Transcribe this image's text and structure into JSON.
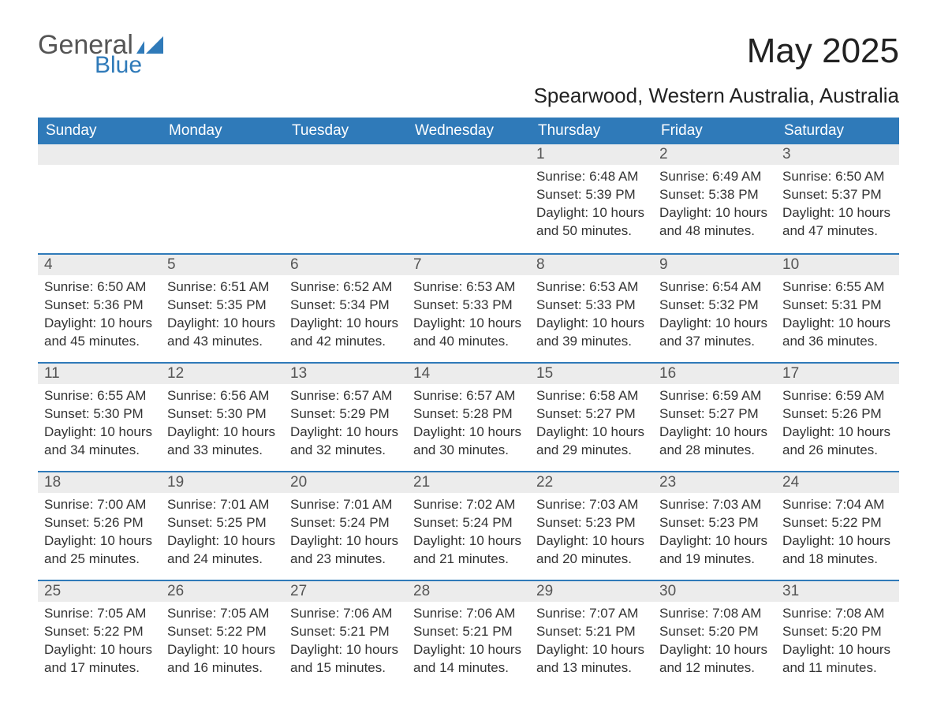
{
  "logo": {
    "general": "General",
    "blue": "Blue"
  },
  "title": "May 2025",
  "location": "Spearwood, Western Australia, Australia",
  "colors": {
    "header_bg": "#2f7ab9",
    "header_text": "#ffffff",
    "daybar_bg": "#ececec",
    "daybar_border": "#2f7ab9",
    "body_text": "#333333",
    "page_bg": "#ffffff"
  },
  "weekdays": [
    "Sunday",
    "Monday",
    "Tuesday",
    "Wednesday",
    "Thursday",
    "Friday",
    "Saturday"
  ],
  "labels": {
    "sunrise": "Sunrise:",
    "sunset": "Sunset:",
    "daylight": "Daylight:"
  },
  "weeks": [
    [
      null,
      null,
      null,
      null,
      {
        "n": "1",
        "sr": "6:48 AM",
        "ss": "5:39 PM",
        "dl": "10 hours and 50 minutes."
      },
      {
        "n": "2",
        "sr": "6:49 AM",
        "ss": "5:38 PM",
        "dl": "10 hours and 48 minutes."
      },
      {
        "n": "3",
        "sr": "6:50 AM",
        "ss": "5:37 PM",
        "dl": "10 hours and 47 minutes."
      }
    ],
    [
      {
        "n": "4",
        "sr": "6:50 AM",
        "ss": "5:36 PM",
        "dl": "10 hours and 45 minutes."
      },
      {
        "n": "5",
        "sr": "6:51 AM",
        "ss": "5:35 PM",
        "dl": "10 hours and 43 minutes."
      },
      {
        "n": "6",
        "sr": "6:52 AM",
        "ss": "5:34 PM",
        "dl": "10 hours and 42 minutes."
      },
      {
        "n": "7",
        "sr": "6:53 AM",
        "ss": "5:33 PM",
        "dl": "10 hours and 40 minutes."
      },
      {
        "n": "8",
        "sr": "6:53 AM",
        "ss": "5:33 PM",
        "dl": "10 hours and 39 minutes."
      },
      {
        "n": "9",
        "sr": "6:54 AM",
        "ss": "5:32 PM",
        "dl": "10 hours and 37 minutes."
      },
      {
        "n": "10",
        "sr": "6:55 AM",
        "ss": "5:31 PM",
        "dl": "10 hours and 36 minutes."
      }
    ],
    [
      {
        "n": "11",
        "sr": "6:55 AM",
        "ss": "5:30 PM",
        "dl": "10 hours and 34 minutes."
      },
      {
        "n": "12",
        "sr": "6:56 AM",
        "ss": "5:30 PM",
        "dl": "10 hours and 33 minutes."
      },
      {
        "n": "13",
        "sr": "6:57 AM",
        "ss": "5:29 PM",
        "dl": "10 hours and 32 minutes."
      },
      {
        "n": "14",
        "sr": "6:57 AM",
        "ss": "5:28 PM",
        "dl": "10 hours and 30 minutes."
      },
      {
        "n": "15",
        "sr": "6:58 AM",
        "ss": "5:27 PM",
        "dl": "10 hours and 29 minutes."
      },
      {
        "n": "16",
        "sr": "6:59 AM",
        "ss": "5:27 PM",
        "dl": "10 hours and 28 minutes."
      },
      {
        "n": "17",
        "sr": "6:59 AM",
        "ss": "5:26 PM",
        "dl": "10 hours and 26 minutes."
      }
    ],
    [
      {
        "n": "18",
        "sr": "7:00 AM",
        "ss": "5:26 PM",
        "dl": "10 hours and 25 minutes."
      },
      {
        "n": "19",
        "sr": "7:01 AM",
        "ss": "5:25 PM",
        "dl": "10 hours and 24 minutes."
      },
      {
        "n": "20",
        "sr": "7:01 AM",
        "ss": "5:24 PM",
        "dl": "10 hours and 23 minutes."
      },
      {
        "n": "21",
        "sr": "7:02 AM",
        "ss": "5:24 PM",
        "dl": "10 hours and 21 minutes."
      },
      {
        "n": "22",
        "sr": "7:03 AM",
        "ss": "5:23 PM",
        "dl": "10 hours and 20 minutes."
      },
      {
        "n": "23",
        "sr": "7:03 AM",
        "ss": "5:23 PM",
        "dl": "10 hours and 19 minutes."
      },
      {
        "n": "24",
        "sr": "7:04 AM",
        "ss": "5:22 PM",
        "dl": "10 hours and 18 minutes."
      }
    ],
    [
      {
        "n": "25",
        "sr": "7:05 AM",
        "ss": "5:22 PM",
        "dl": "10 hours and 17 minutes."
      },
      {
        "n": "26",
        "sr": "7:05 AM",
        "ss": "5:22 PM",
        "dl": "10 hours and 16 minutes."
      },
      {
        "n": "27",
        "sr": "7:06 AM",
        "ss": "5:21 PM",
        "dl": "10 hours and 15 minutes."
      },
      {
        "n": "28",
        "sr": "7:06 AM",
        "ss": "5:21 PM",
        "dl": "10 hours and 14 minutes."
      },
      {
        "n": "29",
        "sr": "7:07 AM",
        "ss": "5:21 PM",
        "dl": "10 hours and 13 minutes."
      },
      {
        "n": "30",
        "sr": "7:08 AM",
        "ss": "5:20 PM",
        "dl": "10 hours and 12 minutes."
      },
      {
        "n": "31",
        "sr": "7:08 AM",
        "ss": "5:20 PM",
        "dl": "10 hours and 11 minutes."
      }
    ]
  ]
}
